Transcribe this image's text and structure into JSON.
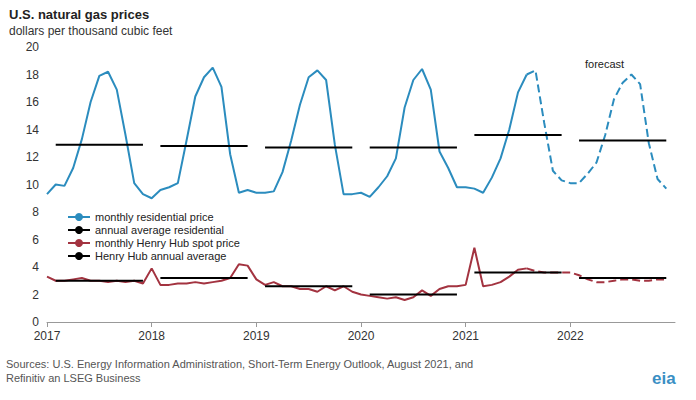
{
  "chart_data": {
    "type": "line",
    "title": "U.S. natural gas prices",
    "subtitle": "dollars per thousand cubic feet",
    "annotations": [
      "forecast"
    ],
    "source": [
      "Sources: U.S. Energy Information Administration, Short-Term Energy Outlook, August 2021, and",
      "Refinitiv an LSEG Business"
    ],
    "logo": "eia",
    "xlim": [
      2017,
      2023
    ],
    "xticks": [
      2017,
      2018,
      2019,
      2020,
      2021,
      2022
    ],
    "ylim": [
      0,
      20
    ],
    "yticks": [
      0,
      2,
      4,
      6,
      8,
      10,
      12,
      14,
      16,
      18,
      20
    ],
    "grid": false,
    "legend": "left",
    "x": [
      2017,
      2017.0833,
      2017.1667,
      2017.25,
      2017.3333,
      2017.4167,
      2017.5,
      2017.5833,
      2017.6667,
      2017.75,
      2017.8333,
      2017.9167,
      2018,
      2018.0833,
      2018.1667,
      2018.25,
      2018.3333,
      2018.4167,
      2018.5,
      2018.5833,
      2018.6667,
      2018.75,
      2018.8333,
      2018.9167,
      2019,
      2019.0833,
      2019.1667,
      2019.25,
      2019.3333,
      2019.4167,
      2019.5,
      2019.5833,
      2019.6667,
      2019.75,
      2019.8333,
      2019.9167,
      2020,
      2020.0833,
      2020.1667,
      2020.25,
      2020.3333,
      2020.4167,
      2020.5,
      2020.5833,
      2020.6667,
      2020.75,
      2020.8333,
      2020.9167,
      2021,
      2021.0833,
      2021.1667,
      2021.25,
      2021.3333,
      2021.4167,
      2021.5,
      2021.5833,
      2021.6667,
      2021.75,
      2021.8333,
      2021.9167,
      2022,
      2022.0833,
      2022.1667,
      2022.25,
      2022.3333,
      2022.4167,
      2022.5,
      2022.5833,
      2022.6667,
      2022.75,
      2022.8333,
      2022.9167
    ],
    "series": [
      {
        "name": "monthly residential price",
        "color": "#2b8cbe",
        "line_style": "solid",
        "values": [
          9.3,
          10.0,
          9.9,
          11.2,
          13.3,
          16.0,
          17.9,
          18.2,
          16.9,
          13.6,
          10.1,
          9.3,
          9.0,
          9.6,
          9.8,
          10.1,
          13.2,
          16.4,
          17.8,
          18.5,
          17.1,
          12.2,
          9.4,
          9.6,
          9.4,
          9.4,
          9.5,
          10.9,
          13.2,
          15.8,
          17.8,
          18.3,
          17.6,
          12.9,
          9.3,
          9.3,
          9.4,
          9.1,
          9.8,
          10.6,
          11.9,
          15.6,
          17.6,
          18.4,
          16.9,
          12.4,
          11.2,
          9.8,
          9.8,
          9.7,
          9.4,
          10.5,
          11.9,
          14.0,
          16.7,
          18.0,
          null,
          null,
          null,
          null,
          null,
          null,
          null,
          null,
          null,
          null,
          null,
          null,
          null,
          null,
          null,
          null
        ]
      },
      {
        "name": "monthly residential price",
        "color": "#2b8cbe",
        "line_style": "dashed",
        "values": [
          null,
          null,
          null,
          null,
          null,
          null,
          null,
          null,
          null,
          null,
          null,
          null,
          null,
          null,
          null,
          null,
          null,
          null,
          null,
          null,
          null,
          null,
          null,
          null,
          null,
          null,
          null,
          null,
          null,
          null,
          null,
          null,
          null,
          null,
          null,
          null,
          null,
          null,
          null,
          null,
          null,
          null,
          null,
          null,
          null,
          null,
          null,
          null,
          null,
          null,
          null,
          null,
          null,
          null,
          null,
          18.0,
          18.3,
          14.5,
          11.0,
          10.3,
          10.1,
          10.1,
          10.8,
          11.6,
          13.6,
          16.2,
          17.4,
          18.0,
          17.3,
          13.0,
          10.4,
          9.7
        ]
      },
      {
        "name": "annual average residential",
        "color": "#000000",
        "line_style": "solid",
        "x": [
          2017.0833,
          2017.9167,
          2018,
          2018.0833,
          2018.9167,
          2019,
          2019.0833,
          2019.9167,
          2020,
          2020.0833,
          2020.9167,
          2021,
          2021.0833,
          2021.9167,
          2022,
          2022.0833,
          2022.9167
        ],
        "values": [
          12.9,
          12.9,
          null,
          12.8,
          12.8,
          null,
          12.7,
          12.7,
          null,
          12.7,
          12.7,
          null,
          13.6,
          13.6,
          null,
          13.2,
          13.2
        ]
      },
      {
        "name": "monthly Henry Hub spot price",
        "color": "#a33340",
        "line_style": "solid",
        "values": [
          3.3,
          3.0,
          3.0,
          3.1,
          3.2,
          3.0,
          3.0,
          2.9,
          3.0,
          2.9,
          3.0,
          2.8,
          3.9,
          2.7,
          2.7,
          2.8,
          2.8,
          2.9,
          2.8,
          2.9,
          3.0,
          3.2,
          4.2,
          4.1,
          3.1,
          2.7,
          2.9,
          2.6,
          2.6,
          2.4,
          2.4,
          2.2,
          2.6,
          2.3,
          2.6,
          2.2,
          2.0,
          1.9,
          1.8,
          1.7,
          1.8,
          1.6,
          1.8,
          2.3,
          1.9,
          2.4,
          2.6,
          2.6,
          2.7,
          5.4,
          2.6,
          2.7,
          2.9,
          3.3,
          3.8,
          3.9,
          null,
          null,
          null,
          null,
          null,
          null,
          null,
          null,
          null,
          null,
          null,
          null,
          null,
          null,
          null,
          null
        ]
      },
      {
        "name": "monthly Henry Hub spot price",
        "color": "#a33340",
        "line_style": "dashed",
        "values": [
          null,
          null,
          null,
          null,
          null,
          null,
          null,
          null,
          null,
          null,
          null,
          null,
          null,
          null,
          null,
          null,
          null,
          null,
          null,
          null,
          null,
          null,
          null,
          null,
          null,
          null,
          null,
          null,
          null,
          null,
          null,
          null,
          null,
          null,
          null,
          null,
          null,
          null,
          null,
          null,
          null,
          null,
          null,
          null,
          null,
          null,
          null,
          null,
          null,
          null,
          null,
          null,
          null,
          null,
          null,
          3.9,
          3.7,
          3.6,
          3.6,
          3.6,
          3.6,
          3.4,
          3.1,
          2.9,
          2.9,
          3.0,
          3.1,
          3.1,
          3.0,
          3.0,
          3.1,
          3.1
        ]
      },
      {
        "name": "Henry Hub annual average",
        "color": "#000000",
        "line_style": "solid",
        "x": [
          2017.0833,
          2017.9167,
          2018,
          2018.0833,
          2018.9167,
          2019,
          2019.0833,
          2019.9167,
          2020,
          2020.0833,
          2020.9167,
          2021,
          2021.0833,
          2021.9167,
          2022,
          2022.0833,
          2022.9167
        ],
        "values": [
          3.0,
          3.0,
          null,
          3.2,
          3.2,
          null,
          2.6,
          2.6,
          null,
          2.0,
          2.0,
          null,
          3.6,
          3.6,
          null,
          3.2,
          3.2
        ]
      }
    ]
  }
}
